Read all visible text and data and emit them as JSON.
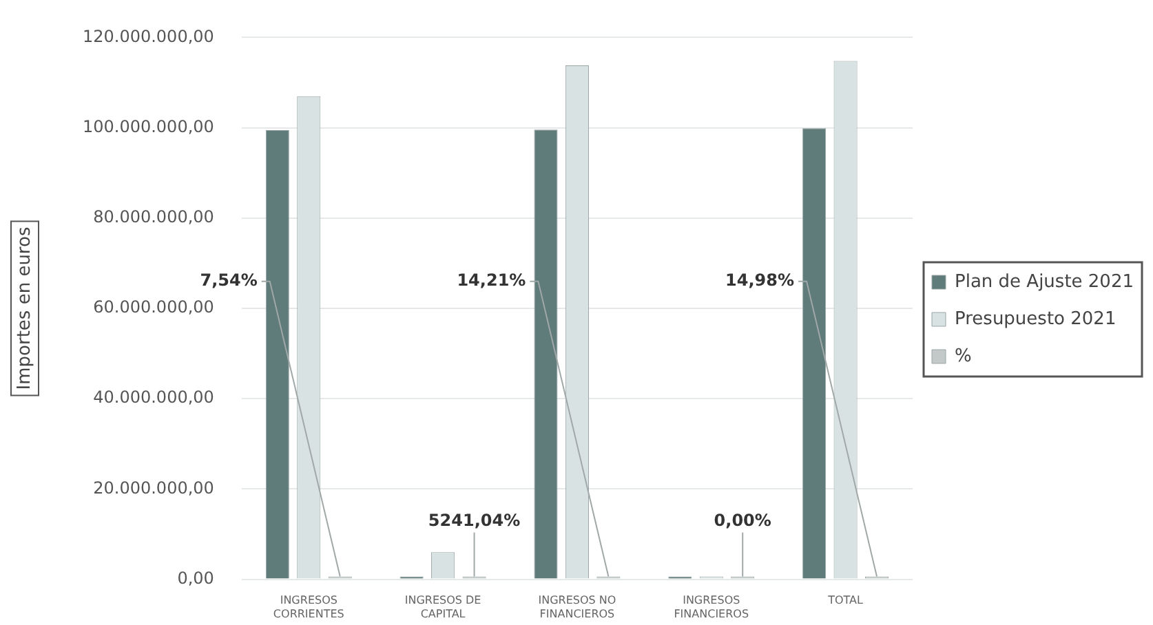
{
  "chart_data": {
    "type": "bar",
    "ylabel": "Importes en euros",
    "categories": [
      "INGRESOS CORRIENTES",
      "INGRESOS DE CAPITAL",
      "INGRESOS NO FINANCIEROS",
      "INGRESOS FINANCIEROS",
      "TOTAL"
    ],
    "series": [
      {
        "name": "Plan de Ajuste 2021",
        "color": "#5f7b7a",
        "values": [
          99500000,
          100000,
          99600000,
          300000,
          99900000
        ]
      },
      {
        "name": "Presupuesto 2021",
        "color": "#d9e2e2",
        "values": [
          107000000,
          6000000,
          113800000,
          300000,
          114800000
        ]
      },
      {
        "name": "%",
        "color": "#c3c9c9",
        "values": [
          7.54,
          5241.04,
          14.21,
          0,
          14.98
        ],
        "value_labels": [
          "7,54%",
          "5241,04%",
          "14,21%",
          "0,00%",
          "14,98%"
        ]
      }
    ],
    "ylim": [
      0,
      120000000
    ],
    "yticks": [
      {
        "value": 0,
        "label": "0,00"
      },
      {
        "value": 20000000,
        "label": "20.000.000,00"
      },
      {
        "value": 40000000,
        "label": "40.000.000,00"
      },
      {
        "value": 60000000,
        "label": "60.000.000,00"
      },
      {
        "value": 80000000,
        "label": "80.000.000,00"
      },
      {
        "value": 100000000,
        "label": "100.000.000,00"
      },
      {
        "value": 120000000,
        "label": "120.000.000,00"
      }
    ],
    "grid": "y",
    "legend": "right"
  }
}
